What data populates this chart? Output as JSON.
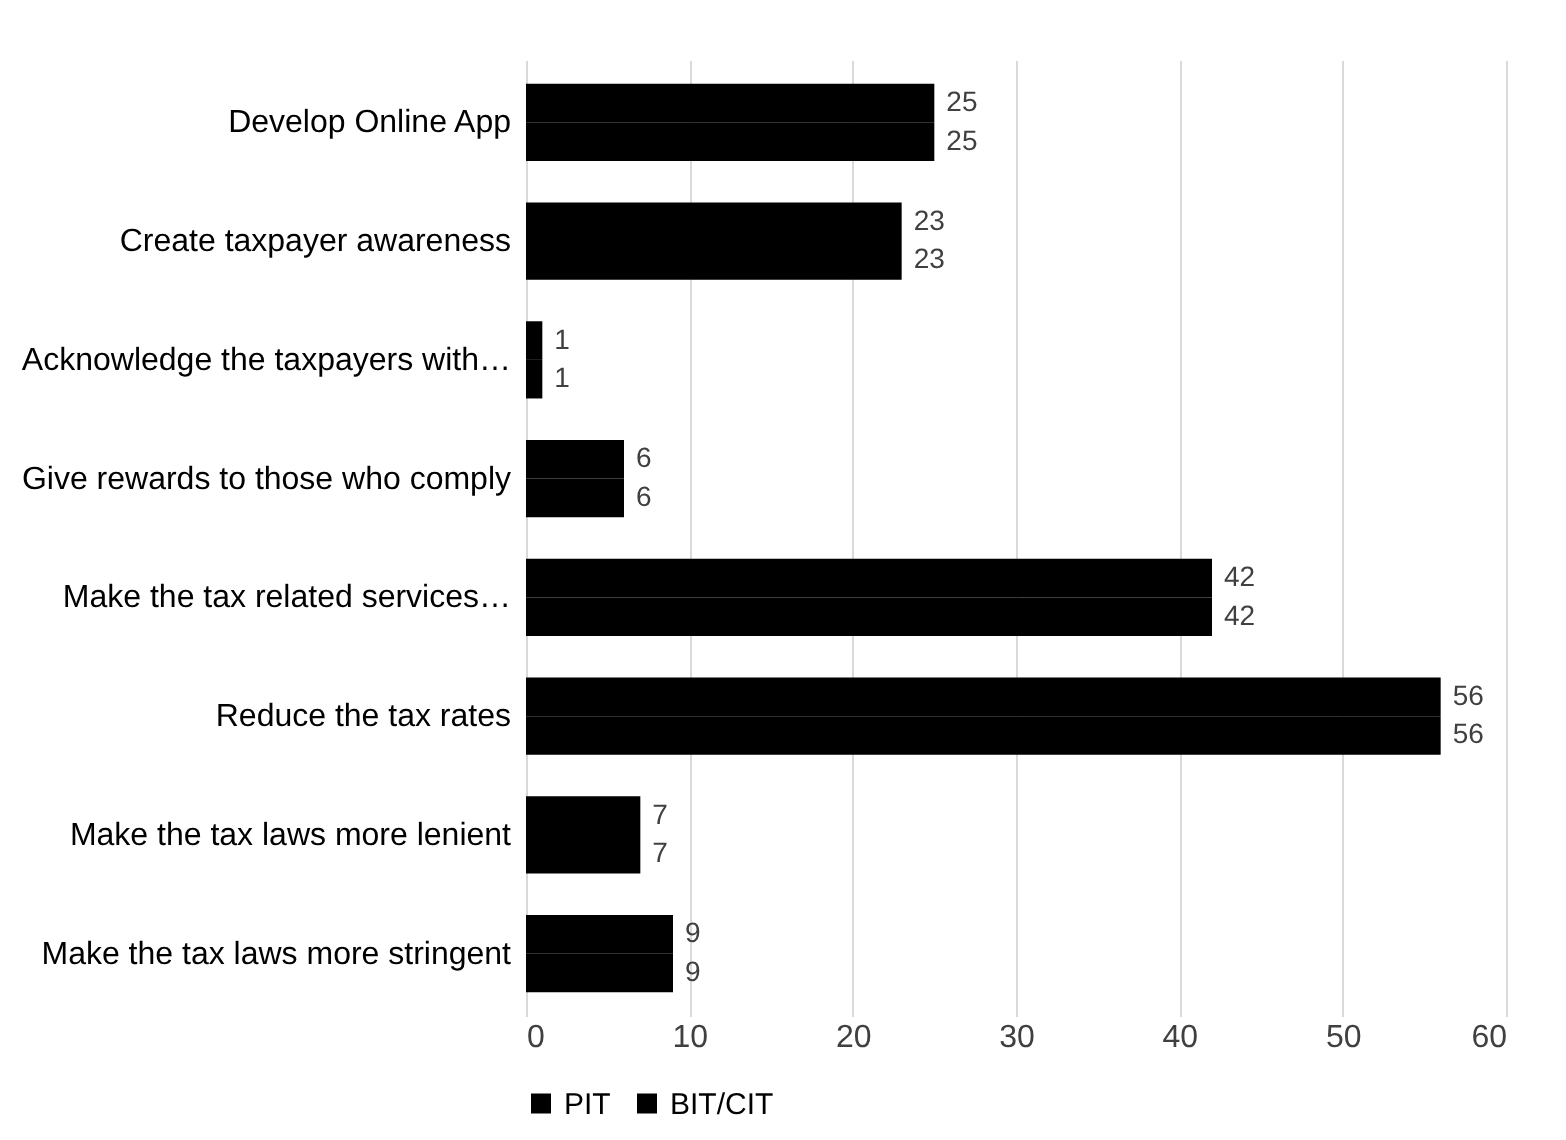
{
  "chart_data": {
    "type": "bar",
    "orientation": "horizontal",
    "categories": [
      "Develop Online App",
      "Create taxpayer awareness",
      "Acknowledge the taxpayers with…",
      "Give rewards to those who comply",
      "Make the tax related services…",
      "Reduce the tax rates",
      "Make the tax laws more lenient",
      "Make the tax laws more stringent"
    ],
    "series": [
      {
        "name": "PIT",
        "color": "#000000",
        "values": [
          25,
          23,
          1,
          6,
          42,
          56,
          7,
          9
        ]
      },
      {
        "name": "BIT/CIT",
        "color": "#000000",
        "values": [
          25,
          23,
          1,
          6,
          42,
          56,
          7,
          9
        ]
      }
    ],
    "xlim": [
      0,
      60
    ],
    "xticks": [
      0,
      10,
      20,
      30,
      40,
      50,
      60
    ],
    "grid": "x",
    "legend": "bottom",
    "data_labels": true
  }
}
